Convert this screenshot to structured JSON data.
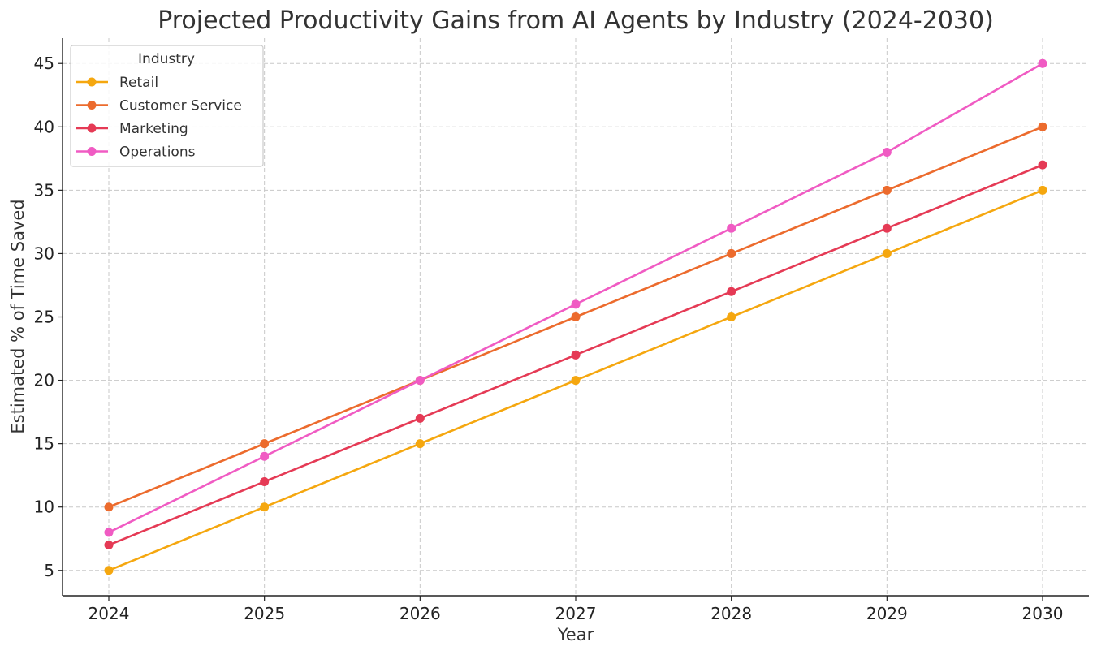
{
  "chart_data": {
    "type": "line",
    "title": "Projected Productivity Gains from AI Agents by Industry (2024-2030)",
    "xlabel": "Year",
    "ylabel": "Estimated % of Time Saved",
    "x": [
      "2024",
      "2025",
      "2026",
      "2027",
      "2028",
      "2029",
      "2030"
    ],
    "yticks": [
      5,
      10,
      15,
      20,
      25,
      30,
      35,
      40,
      45
    ],
    "ylim": [
      3,
      47
    ],
    "grid": true,
    "legend": {
      "title": "Industry",
      "placement": "top-left"
    },
    "series": [
      {
        "name": "Retail",
        "color": "#f5a70f",
        "values": [
          5,
          10,
          15,
          20,
          25,
          30,
          35
        ]
      },
      {
        "name": "Customer Service",
        "color": "#ec6b2d",
        "values": [
          10,
          15,
          20,
          25,
          30,
          35,
          40
        ]
      },
      {
        "name": "Marketing",
        "color": "#e53a55",
        "values": [
          7,
          12,
          17,
          22,
          27,
          32,
          37
        ]
      },
      {
        "name": "Operations",
        "color": "#f05bc3",
        "values": [
          8,
          14,
          20,
          26,
          32,
          38,
          45
        ]
      }
    ]
  }
}
